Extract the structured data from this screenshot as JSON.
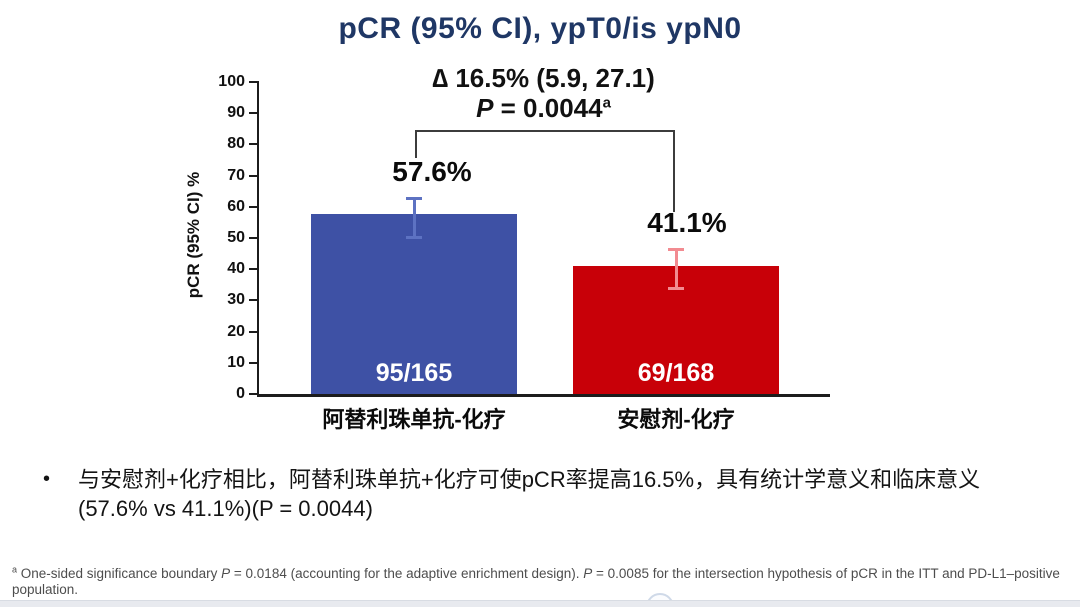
{
  "page": {
    "bullet": {
      "marker": "•",
      "line1": "与安慰剂+化疗相比，阿替利珠单抗+化疗可使pCR率提高16.5%，具有统计学意义和临床意义",
      "line2": "(57.6% vs 41.1%)(P = 0.0044)"
    },
    "footnote": {
      "sup": "a",
      "seg1": " One-sided significance boundary ",
      "p1": "P",
      "seg2": " = 0.0184 (accounting for the adaptive enrichment design). ",
      "p2": "P",
      "seg3": " = 0.0085 for the intersection hypothesis of pCR in the ITT and PD-L1–positive population."
    }
  },
  "chart_data": {
    "type": "bar",
    "title": "pCR (95% CI), ypT0/is ypN0",
    "title_color": "#1F3765",
    "ylabel": "pCR (95% CI) %",
    "ylim": [
      0,
      100
    ],
    "yticks": [
      0,
      10,
      20,
      30,
      40,
      50,
      60,
      70,
      80,
      90,
      100
    ],
    "grid": false,
    "legend": "none",
    "categories": [
      "阿替利珠单抗-化疗",
      "安慰剂-化疗"
    ],
    "series": [
      {
        "name": "阿替利珠单抗-化疗",
        "value": 57.6,
        "value_label": "57.6%",
        "count_label": "95/165",
        "ci": [
          49.8,
          65.2
        ],
        "bar_color": "#3E51A5",
        "error_color": "#5D72C2"
      },
      {
        "name": "安慰剂-化疗",
        "value": 41.1,
        "value_label": "41.1%",
        "count_label": "69/168",
        "ci": [
          33.4,
          48.7
        ],
        "bar_color": "#C80008",
        "error_color": "#F28B91"
      }
    ],
    "annotations": {
      "delta": "∆ 16.5% (5.9, 27.1)",
      "p_italic": "P",
      "p_rest": " = 0.0044",
      "p_sup": "a"
    }
  }
}
